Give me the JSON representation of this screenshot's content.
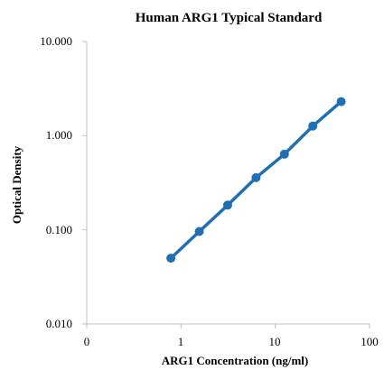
{
  "chart_data": {
    "type": "line",
    "title": "Human ARG1 Typical Standard",
    "xlabel": "ARG1 Concentration (ng/ml)",
    "ylabel": "Optical Density",
    "x_scale": "log",
    "y_scale": "log",
    "xlim": [
      0.1,
      100
    ],
    "ylim": [
      0.01,
      10
    ],
    "x_tick_labels": [
      "0",
      "1",
      "10",
      "100"
    ],
    "y_tick_labels": [
      "0.010",
      "0.100",
      "1.000",
      "10.000"
    ],
    "grid": false,
    "legend": "none",
    "series": [
      {
        "color": "#1f6fb2",
        "x": [
          0.781,
          1.563,
          3.125,
          6.25,
          12.5,
          25,
          50
        ],
        "y": [
          0.05,
          0.096,
          0.183,
          0.358,
          0.636,
          1.265,
          2.3
        ]
      }
    ]
  }
}
